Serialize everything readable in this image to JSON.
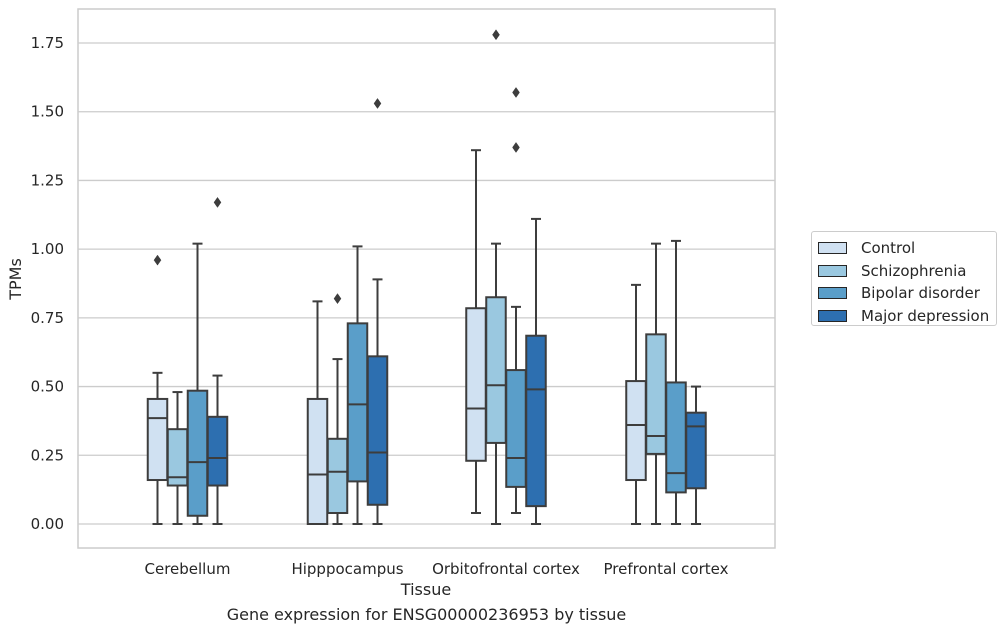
{
  "chart_data": {
    "type": "box",
    "xlabel": "Tissue",
    "ylabel": "TPMs",
    "caption": "Gene expression for ENSG00000236953 by tissue",
    "categories": [
      "Cerebellum",
      "Hipppocampus",
      "Orbitofrontal cortex",
      "Prefrontal cortex"
    ],
    "ylim": [
      -0.09,
      1.88
    ],
    "yticks": [
      "0.00",
      "0.25",
      "0.50",
      "0.75",
      "1.00",
      "1.25",
      "1.50",
      "1.75"
    ],
    "grid": true,
    "legend_position": "right",
    "series": [
      {
        "name": "Control",
        "color": "#d0e1f2",
        "boxes": [
          {
            "whisker_low": 0.0,
            "q1": 0.16,
            "median": 0.385,
            "q3": 0.455,
            "whisker_high": 0.55,
            "outliers": [
              0.96
            ]
          },
          {
            "whisker_low": 0.0,
            "q1": 0.0,
            "median": 0.18,
            "q3": 0.455,
            "whisker_high": 0.81,
            "outliers": []
          },
          {
            "whisker_low": 0.04,
            "q1": 0.23,
            "median": 0.42,
            "q3": 0.785,
            "whisker_high": 1.36,
            "outliers": []
          },
          {
            "whisker_low": 0.0,
            "q1": 0.16,
            "median": 0.36,
            "q3": 0.52,
            "whisker_high": 0.87,
            "outliers": []
          }
        ]
      },
      {
        "name": "Schizophrenia",
        "color": "#9ac8e0",
        "boxes": [
          {
            "whisker_low": 0.0,
            "q1": 0.14,
            "median": 0.17,
            "q3": 0.345,
            "whisker_high": 0.48,
            "outliers": []
          },
          {
            "whisker_low": 0.0,
            "q1": 0.04,
            "median": 0.19,
            "q3": 0.31,
            "whisker_high": 0.6,
            "outliers": [
              0.82
            ]
          },
          {
            "whisker_low": 0.0,
            "q1": 0.295,
            "median": 0.505,
            "q3": 0.825,
            "whisker_high": 1.02,
            "outliers": [
              1.78
            ]
          },
          {
            "whisker_low": 0.0,
            "q1": 0.255,
            "median": 0.32,
            "q3": 0.69,
            "whisker_high": 1.02,
            "outliers": []
          }
        ]
      },
      {
        "name": "Bipolar disorder",
        "color": "#5a9ec9",
        "boxes": [
          {
            "whisker_low": 0.0,
            "q1": 0.03,
            "median": 0.225,
            "q3": 0.485,
            "whisker_high": 1.02,
            "outliers": []
          },
          {
            "whisker_low": 0.0,
            "q1": 0.155,
            "median": 0.435,
            "q3": 0.73,
            "whisker_high": 1.01,
            "outliers": []
          },
          {
            "whisker_low": 0.04,
            "q1": 0.135,
            "median": 0.24,
            "q3": 0.56,
            "whisker_high": 0.79,
            "outliers": [
              1.37,
              1.57
            ]
          },
          {
            "whisker_low": 0.0,
            "q1": 0.115,
            "median": 0.185,
            "q3": 0.515,
            "whisker_high": 1.03,
            "outliers": []
          }
        ]
      },
      {
        "name": "Major depression",
        "color": "#2d6fb0",
        "boxes": [
          {
            "whisker_low": 0.0,
            "q1": 0.14,
            "median": 0.24,
            "q3": 0.39,
            "whisker_high": 0.54,
            "outliers": [
              1.17
            ]
          },
          {
            "whisker_low": 0.0,
            "q1": 0.07,
            "median": 0.26,
            "q3": 0.61,
            "whisker_high": 0.89,
            "outliers": [
              1.53
            ]
          },
          {
            "whisker_low": 0.0,
            "q1": 0.065,
            "median": 0.49,
            "q3": 0.685,
            "whisker_high": 1.11,
            "outliers": []
          },
          {
            "whisker_low": 0.0,
            "q1": 0.13,
            "median": 0.355,
            "q3": 0.405,
            "whisker_high": 0.5,
            "outliers": []
          }
        ]
      }
    ]
  }
}
